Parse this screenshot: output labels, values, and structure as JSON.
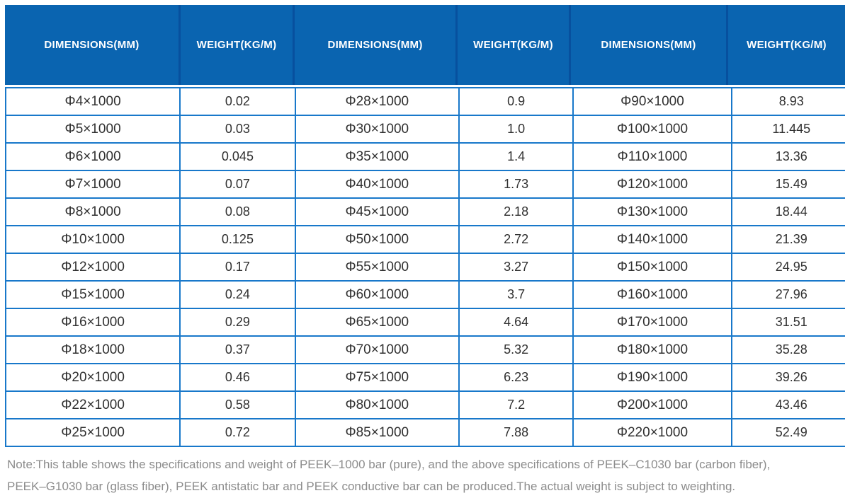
{
  "table": {
    "headers": [
      "DIMENSIONS(MM)",
      "WEIGHT(KG/M)",
      "DIMENSIONS(MM)",
      "WEIGHT(KG/M)",
      "DIMENSIONS(MM)",
      "WEIGHT(KG/M)"
    ],
    "rows": [
      [
        "Φ4×1000",
        "0.02",
        "Φ28×1000",
        "0.9",
        "Φ90×1000",
        "8.93"
      ],
      [
        "Φ5×1000",
        "0.03",
        "Φ30×1000",
        "1.0",
        "Φ100×1000",
        "11.445"
      ],
      [
        "Φ6×1000",
        "0.045",
        "Φ35×1000",
        "1.4",
        "Φ110×1000",
        "13.36"
      ],
      [
        "Φ7×1000",
        "0.07",
        "Φ40×1000",
        "1.73",
        "Φ120×1000",
        "15.49"
      ],
      [
        "Φ8×1000",
        "0.08",
        "Φ45×1000",
        "2.18",
        "Φ130×1000",
        "18.44"
      ],
      [
        "Φ10×1000",
        "0.125",
        "Φ50×1000",
        "2.72",
        "Φ140×1000",
        "21.39"
      ],
      [
        "Φ12×1000",
        "0.17",
        "Φ55×1000",
        "3.27",
        "Φ150×1000",
        "24.95"
      ],
      [
        "Φ15×1000",
        "0.24",
        "Φ60×1000",
        "3.7",
        "Φ160×1000",
        "27.96"
      ],
      [
        "Φ16×1000",
        "0.29",
        "Φ65×1000",
        "4.64",
        "Φ170×1000",
        "31.51"
      ],
      [
        "Φ18×1000",
        "0.37",
        "Φ70×1000",
        "5.32",
        "Φ180×1000",
        "35.28"
      ],
      [
        "Φ20×1000",
        "0.46",
        "Φ75×1000",
        "6.23",
        "Φ190×1000",
        "39.26"
      ],
      [
        "Φ22×1000",
        "0.58",
        "Φ80×1000",
        "7.2",
        "Φ200×1000",
        "43.46"
      ],
      [
        "Φ25×1000",
        "0.72",
        "Φ85×1000",
        "7.88",
        "Φ220×1000",
        "52.49"
      ]
    ]
  },
  "note": {
    "lines": [
      "Note:This table shows the specifications and weight of PEEK–1000 bar (pure), and the above specifications of PEEK–C1030 bar (carbon fiber),",
      "PEEK–G1030 bar (glass fiber), PEEK antistatic bar and PEEK conductive bar can be produced.The actual weight is subject to weighting."
    ]
  },
  "colors": {
    "header_background": "#0a64b0",
    "header_divider": "#07509e",
    "grid_line": "#1878ca",
    "body_text": "#303030",
    "note_text": "#8c8c8c"
  }
}
